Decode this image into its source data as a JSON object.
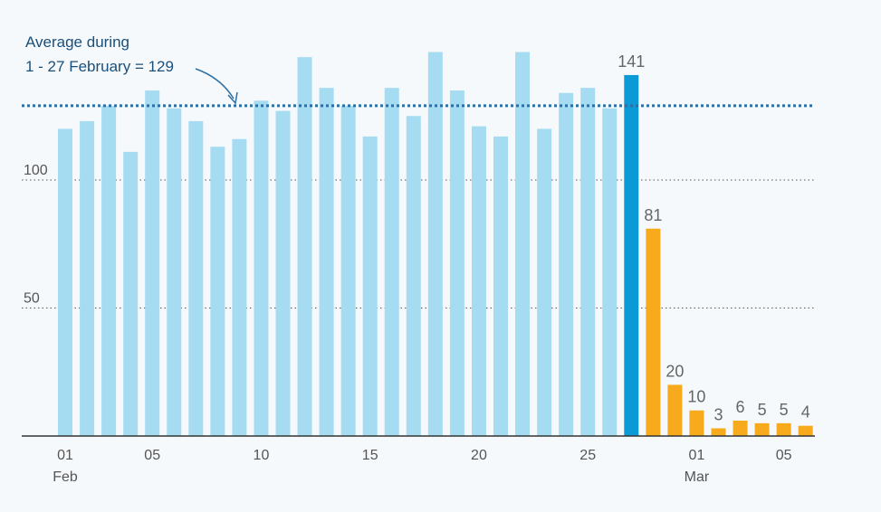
{
  "chart_data": {
    "type": "bar",
    "title": "",
    "xlabel": "",
    "ylabel": "",
    "ylim": [
      0,
      150
    ],
    "y_ticks": [
      50,
      100
    ],
    "grid": true,
    "colors": {
      "base": "#a6dcf2",
      "highlight": "#0b9ad6",
      "after": "#f7aa1c",
      "avg_line": "#2e6fa3",
      "axis": "#333333",
      "grid": "#555555"
    },
    "categories": [
      "01 Feb",
      "02 Feb",
      "03 Feb",
      "04 Feb",
      "05 Feb",
      "06 Feb",
      "07 Feb",
      "08 Feb",
      "09 Feb",
      "10 Feb",
      "11 Feb",
      "12 Feb",
      "13 Feb",
      "14 Feb",
      "15 Feb",
      "16 Feb",
      "17 Feb",
      "18 Feb",
      "19 Feb",
      "20 Feb",
      "21 Feb",
      "22 Feb",
      "23 Feb",
      "24 Feb",
      "25 Feb",
      "26 Feb",
      "27 Feb",
      "28 Feb",
      "29 Feb",
      "01 Mar",
      "02 Mar",
      "03 Mar",
      "04 Mar",
      "05 Mar",
      "06 Mar"
    ],
    "values": [
      120,
      123,
      129,
      111,
      135,
      128,
      123,
      113,
      116,
      131,
      127,
      148,
      136,
      129,
      117,
      136,
      125,
      150,
      135,
      121,
      117,
      150,
      120,
      134,
      136,
      128,
      141,
      81,
      20,
      10,
      3,
      6,
      5,
      5,
      4
    ],
    "highlight_index": 26,
    "after_start_index": 27,
    "data_labels": [
      {
        "index": 26,
        "text": "141"
      },
      {
        "index": 27,
        "text": "81"
      },
      {
        "index": 28,
        "text": "20"
      },
      {
        "index": 29,
        "text": "10"
      },
      {
        "index": 30,
        "text": "3"
      },
      {
        "index": 31,
        "text": "6"
      },
      {
        "index": 32,
        "text": "5"
      },
      {
        "index": 33,
        "text": "5"
      },
      {
        "index": 34,
        "text": "4"
      }
    ],
    "x_tick_labels": [
      {
        "index": 0,
        "day": "01",
        "month": "Feb"
      },
      {
        "index": 4,
        "day": "05",
        "month": ""
      },
      {
        "index": 9,
        "day": "10",
        "month": ""
      },
      {
        "index": 14,
        "day": "15",
        "month": ""
      },
      {
        "index": 19,
        "day": "20",
        "month": ""
      },
      {
        "index": 24,
        "day": "25",
        "month": ""
      },
      {
        "index": 29,
        "day": "01",
        "month": "Mar"
      },
      {
        "index": 33,
        "day": "05",
        "month": ""
      }
    ],
    "average": {
      "value": 129,
      "label_line1": "Average during",
      "label_line2": "1 - 27 February = 129"
    }
  }
}
